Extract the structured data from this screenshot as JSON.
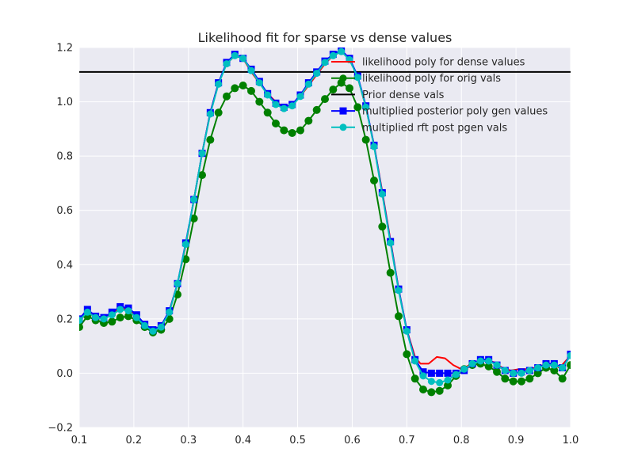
{
  "colors": {
    "plot_background": "#eaeaf2",
    "grid": "#ffffff",
    "text": "#262626",
    "likelihood_dense": "#ff0000",
    "likelihood_orig": "#008000",
    "prior_dense": "#000000",
    "posterior_poly": "#0000ff",
    "rft_post": "#00bfbf"
  },
  "chart_data": {
    "type": "line",
    "title": "Likelihood fit for sparse vs dense values",
    "xlabel": "",
    "ylabel": "",
    "xlim": [
      0.1,
      1.0
    ],
    "ylim": [
      -0.2,
      1.2
    ],
    "x_ticks": [
      "0.1",
      "0.2",
      "0.3",
      "0.4",
      "0.5",
      "0.6",
      "0.7",
      "0.8",
      "0.9",
      "1.0"
    ],
    "y_ticks": [
      "−0.2",
      "0.0",
      "0.2",
      "0.4",
      "0.6",
      "0.8",
      "1.0",
      "1.2"
    ],
    "grid": true,
    "legend_position": "top-right",
    "series": [
      {
        "name": "likelihood poly for dense values",
        "color": "#ff0000",
        "marker": "none",
        "x": [
          0.1,
          0.115,
          0.13,
          0.145,
          0.16,
          0.175,
          0.19,
          0.205,
          0.22,
          0.235,
          0.25,
          0.265,
          0.28,
          0.295,
          0.31,
          0.325,
          0.34,
          0.355,
          0.37,
          0.385,
          0.4,
          0.415,
          0.43,
          0.445,
          0.46,
          0.475,
          0.49,
          0.505,
          0.52,
          0.535,
          0.55,
          0.565,
          0.58,
          0.595,
          0.61,
          0.625,
          0.64,
          0.655,
          0.67,
          0.685,
          0.7,
          0.715,
          0.725,
          0.74,
          0.755,
          0.77,
          0.785,
          0.8,
          0.815,
          0.83,
          0.845,
          0.86,
          0.875,
          0.89,
          0.905,
          0.92,
          0.935,
          0.95,
          0.965,
          0.98,
          1.0
        ],
        "y": [
          0.19,
          0.23,
          0.21,
          0.205,
          0.22,
          0.24,
          0.235,
          0.21,
          0.18,
          0.16,
          0.17,
          0.23,
          0.33,
          0.47,
          0.64,
          0.81,
          0.96,
          1.07,
          1.14,
          1.17,
          1.16,
          1.11,
          1.07,
          1.03,
          1.0,
          0.98,
          0.99,
          1.02,
          1.06,
          1.1,
          1.14,
          1.17,
          1.185,
          1.16,
          1.09,
          0.98,
          0.84,
          0.67,
          0.49,
          0.31,
          0.16,
          0.06,
          0.035,
          0.035,
          0.06,
          0.055,
          0.03,
          0.015,
          0.03,
          0.045,
          0.05,
          0.04,
          0.02,
          0.01,
          0.015,
          0.015,
          0.02,
          0.03,
          0.035,
          0.02,
          0.065
        ]
      },
      {
        "name": "likelihood poly for orig vals",
        "color": "#008000",
        "marker": "o",
        "x": [
          0.1,
          0.115,
          0.13,
          0.145,
          0.16,
          0.175,
          0.19,
          0.205,
          0.22,
          0.235,
          0.25,
          0.265,
          0.28,
          0.295,
          0.31,
          0.325,
          0.34,
          0.355,
          0.37,
          0.385,
          0.4,
          0.415,
          0.43,
          0.445,
          0.46,
          0.475,
          0.49,
          0.505,
          0.52,
          0.535,
          0.55,
          0.565,
          0.58,
          0.595,
          0.61,
          0.625,
          0.64,
          0.655,
          0.67,
          0.685,
          0.7,
          0.715,
          0.73,
          0.745,
          0.76,
          0.775,
          0.79,
          0.805,
          0.82,
          0.835,
          0.85,
          0.865,
          0.88,
          0.895,
          0.91,
          0.925,
          0.94,
          0.955,
          0.97,
          0.985,
          1.0
        ],
        "y": [
          0.17,
          0.21,
          0.195,
          0.185,
          0.19,
          0.205,
          0.21,
          0.195,
          0.17,
          0.15,
          0.16,
          0.2,
          0.29,
          0.42,
          0.57,
          0.73,
          0.86,
          0.96,
          1.02,
          1.05,
          1.06,
          1.04,
          1.0,
          0.96,
          0.92,
          0.895,
          0.885,
          0.895,
          0.93,
          0.97,
          1.01,
          1.045,
          1.07,
          1.05,
          0.98,
          0.86,
          0.71,
          0.54,
          0.37,
          0.21,
          0.07,
          -0.02,
          -0.06,
          -0.07,
          -0.065,
          -0.045,
          -0.01,
          0.015,
          0.03,
          0.035,
          0.025,
          0.005,
          -0.02,
          -0.03,
          -0.03,
          -0.02,
          0.0,
          0.02,
          0.01,
          -0.02,
          0.03
        ]
      },
      {
        "name": "Prior dense vals",
        "color": "#000000",
        "marker": "none",
        "x": [
          0.1,
          1.0
        ],
        "y": [
          1.11,
          1.11
        ]
      },
      {
        "name": "multiplied posterior poly gen values",
        "color": "#0000ff",
        "marker": "s",
        "x": [
          0.1,
          0.115,
          0.13,
          0.145,
          0.16,
          0.175,
          0.19,
          0.205,
          0.22,
          0.235,
          0.25,
          0.265,
          0.28,
          0.295,
          0.31,
          0.325,
          0.34,
          0.355,
          0.37,
          0.385,
          0.4,
          0.415,
          0.43,
          0.445,
          0.46,
          0.475,
          0.49,
          0.505,
          0.52,
          0.535,
          0.55,
          0.565,
          0.58,
          0.595,
          0.61,
          0.625,
          0.64,
          0.655,
          0.67,
          0.685,
          0.7,
          0.715,
          0.73,
          0.745,
          0.76,
          0.775,
          0.79,
          0.805,
          0.82,
          0.835,
          0.85,
          0.865,
          0.88,
          0.895,
          0.91,
          0.925,
          0.94,
          0.955,
          0.97,
          0.985,
          1.0
        ],
        "y": [
          0.2,
          0.235,
          0.21,
          0.205,
          0.225,
          0.245,
          0.24,
          0.215,
          0.18,
          0.16,
          0.175,
          0.23,
          0.33,
          0.48,
          0.64,
          0.81,
          0.96,
          1.07,
          1.145,
          1.175,
          1.16,
          1.12,
          1.075,
          1.03,
          0.995,
          0.98,
          0.99,
          1.025,
          1.07,
          1.11,
          1.15,
          1.175,
          1.19,
          1.16,
          1.095,
          0.985,
          0.84,
          0.665,
          0.485,
          0.31,
          0.16,
          0.05,
          0.005,
          0.0,
          0.0,
          0.0,
          0.0,
          0.01,
          0.035,
          0.05,
          0.05,
          0.03,
          0.01,
          0.0,
          0.005,
          0.01,
          0.02,
          0.035,
          0.035,
          0.02,
          0.07
        ]
      },
      {
        "name": "multiplied rft post pgen vals",
        "color": "#00bfbf",
        "marker": "o",
        "x": [
          0.1,
          0.115,
          0.13,
          0.145,
          0.16,
          0.175,
          0.19,
          0.205,
          0.22,
          0.235,
          0.25,
          0.265,
          0.28,
          0.295,
          0.31,
          0.325,
          0.34,
          0.355,
          0.37,
          0.385,
          0.4,
          0.415,
          0.43,
          0.445,
          0.46,
          0.475,
          0.49,
          0.505,
          0.52,
          0.535,
          0.55,
          0.565,
          0.58,
          0.595,
          0.61,
          0.625,
          0.64,
          0.655,
          0.67,
          0.685,
          0.7,
          0.715,
          0.73,
          0.745,
          0.76,
          0.775,
          0.79,
          0.805,
          0.82,
          0.835,
          0.85,
          0.865,
          0.88,
          0.895,
          0.91,
          0.925,
          0.94,
          0.955,
          0.97,
          0.985,
          1.0
        ],
        "y": [
          0.195,
          0.225,
          0.205,
          0.2,
          0.215,
          0.235,
          0.23,
          0.205,
          0.175,
          0.155,
          0.17,
          0.225,
          0.33,
          0.475,
          0.64,
          0.81,
          0.955,
          1.065,
          1.14,
          1.17,
          1.16,
          1.115,
          1.07,
          1.025,
          0.99,
          0.975,
          0.985,
          1.02,
          1.065,
          1.105,
          1.145,
          1.17,
          1.185,
          1.155,
          1.09,
          0.98,
          0.835,
          0.66,
          0.48,
          0.305,
          0.155,
          0.045,
          -0.01,
          -0.03,
          -0.035,
          -0.025,
          -0.005,
          0.015,
          0.035,
          0.045,
          0.045,
          0.03,
          0.01,
          0.0,
          0.0,
          0.01,
          0.02,
          0.03,
          0.03,
          0.02,
          0.065
        ]
      }
    ]
  }
}
